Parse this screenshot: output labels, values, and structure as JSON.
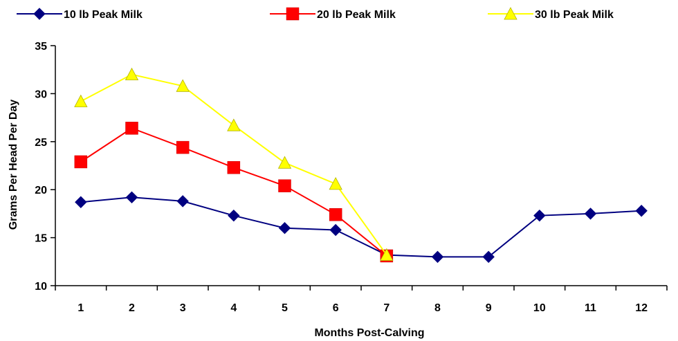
{
  "chart_data": {
    "type": "line",
    "title": "",
    "xlabel": "Months Post-Calving",
    "ylabel": "Grams Per Head Per Day",
    "categories": [
      "1",
      "2",
      "3",
      "4",
      "5",
      "6",
      "7",
      "8",
      "9",
      "10",
      "11",
      "12"
    ],
    "ylim": [
      10,
      35
    ],
    "yticks": [
      "10",
      "15",
      "20",
      "25",
      "30",
      "35"
    ],
    "grid": false,
    "legend_position": "top",
    "series": [
      {
        "name": "10 lb Peak Milk",
        "color": "#000080",
        "marker": "diamond",
        "values": [
          18.7,
          19.2,
          18.8,
          17.3,
          16.0,
          15.8,
          13.2,
          13.0,
          13.0,
          17.3,
          17.5,
          17.8
        ]
      },
      {
        "name": "20 lb Peak Milk",
        "color": "#ff0000",
        "marker": "square",
        "values": [
          22.9,
          26.4,
          24.4,
          22.3,
          20.4,
          17.4,
          13.1,
          null,
          null,
          null,
          null,
          null
        ]
      },
      {
        "name": "30 lb Peak Milk",
        "color": "#ffff00",
        "marker": "triangle",
        "values": [
          29.2,
          32.0,
          30.8,
          26.7,
          22.8,
          20.6,
          13.2,
          null,
          null,
          null,
          null,
          null
        ]
      }
    ]
  }
}
